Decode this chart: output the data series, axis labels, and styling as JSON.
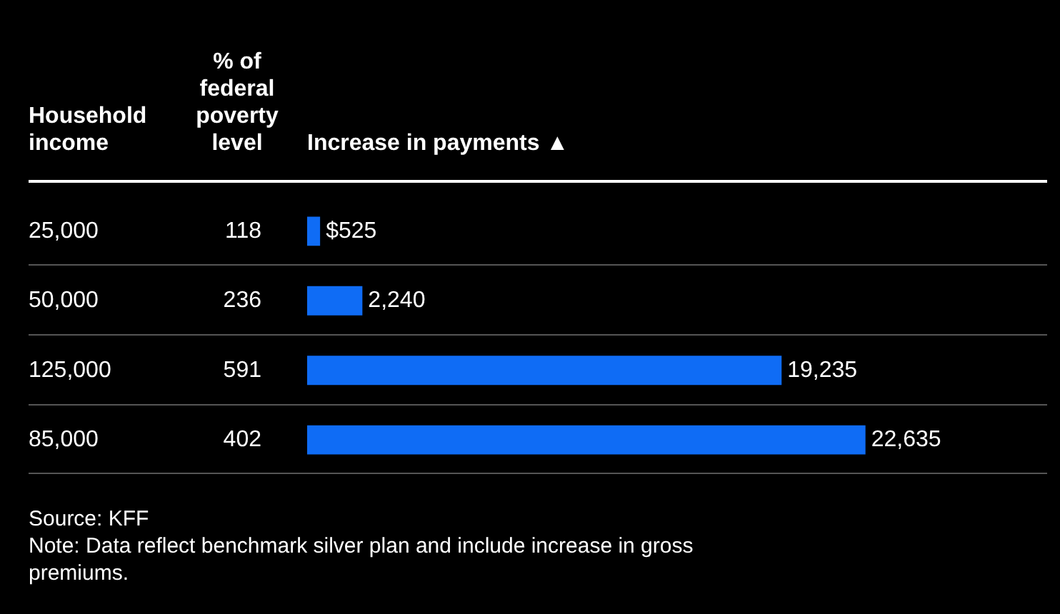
{
  "chart_data": {
    "type": "bar",
    "orientation": "horizontal",
    "ylabel": "Household income",
    "y2label": "% of federal poverty level",
    "xlabel": "Increase in payments ▲",
    "categories": [
      "25,000",
      "50,000",
      "125,000",
      "85,000"
    ],
    "series": [
      {
        "color": "#0f6cf5",
        "values": [
          525,
          2240,
          19235,
          22635
        ],
        "value_labels": [
          "$525",
          "2,240",
          "19,235",
          "22,635"
        ]
      }
    ],
    "annotations": [
      "118",
      "236",
      "591",
      "402",
      "Source: KFF",
      "Note: Data reflect benchmark silver plan and include increase in gross premiums."
    ],
    "grid": "y",
    "legend": false
  }
}
